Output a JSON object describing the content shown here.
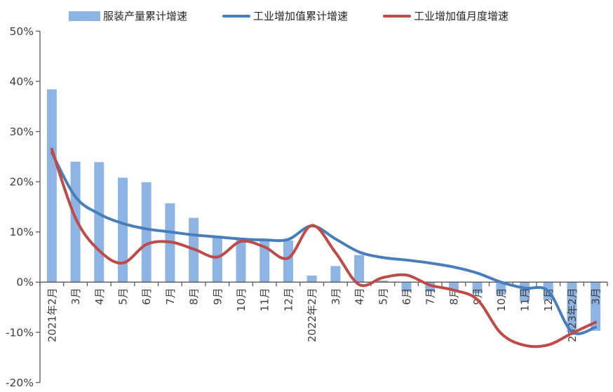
{
  "chart_data": {
    "type": "combo",
    "title": "",
    "xlabel": "",
    "ylabel": "",
    "categories": [
      "2021年2月",
      "3月",
      "4月",
      "5月",
      "6月",
      "7月",
      "8月",
      "9月",
      "10月",
      "11月",
      "12月",
      "2022年2月",
      "3月",
      "4月",
      "5月",
      "6月",
      "7月",
      "8月",
      "9月",
      "10月",
      "11月",
      "12月",
      "2023年2月",
      "3月"
    ],
    "series": [
      {
        "name": "服装产量累计增速",
        "type": "bar",
        "color": "#8EB4E3",
        "values": [
          38.4,
          24.0,
          23.9,
          20.8,
          19.9,
          15.7,
          12.8,
          9.0,
          8.5,
          8.4,
          8.3,
          1.3,
          3.2,
          5.4,
          0.3,
          -1.9,
          -1.9,
          -1.6,
          -2.2,
          -2.5,
          -3.8,
          -3.6,
          -10.0,
          -9.7
        ]
      },
      {
        "name": "工业增加值累计增速",
        "type": "line",
        "color": "#4A7EBB",
        "values": [
          25.8,
          17.0,
          13.6,
          11.7,
          10.6,
          10.0,
          9.4,
          9.0,
          8.6,
          8.4,
          8.5,
          11.2,
          8.6,
          6.0,
          4.9,
          4.4,
          3.8,
          3.0,
          1.8,
          0.0,
          -1.2,
          -1.8,
          -9.9,
          -9.0
        ]
      },
      {
        "name": "工业增加值月度增速",
        "type": "line",
        "color": "#BE4B48",
        "values": [
          26.5,
          12.8,
          6.3,
          3.8,
          7.5,
          8.0,
          6.6,
          5.0,
          8.1,
          7.0,
          4.8,
          11.3,
          5.9,
          -0.5,
          0.9,
          1.4,
          -0.6,
          -1.6,
          -3.5,
          -10.2,
          -12.6,
          -12.5,
          -10.2,
          -8.0
        ]
      }
    ],
    "ylim": [
      -20,
      50
    ],
    "y_ticks": [
      "50%",
      "40%",
      "30%",
      "20%",
      "10%",
      "0%",
      "-10%",
      "-20%"
    ],
    "y_tick_values": [
      50,
      40,
      30,
      20,
      10,
      0,
      -10,
      -20
    ],
    "grid": false,
    "legend_position": "top",
    "line_smoothing": true
  },
  "style": {
    "axis_color": "#595959",
    "label_color": "#3F3F3F",
    "legend_text_color": "#262626",
    "background": "#FFFFFF"
  }
}
